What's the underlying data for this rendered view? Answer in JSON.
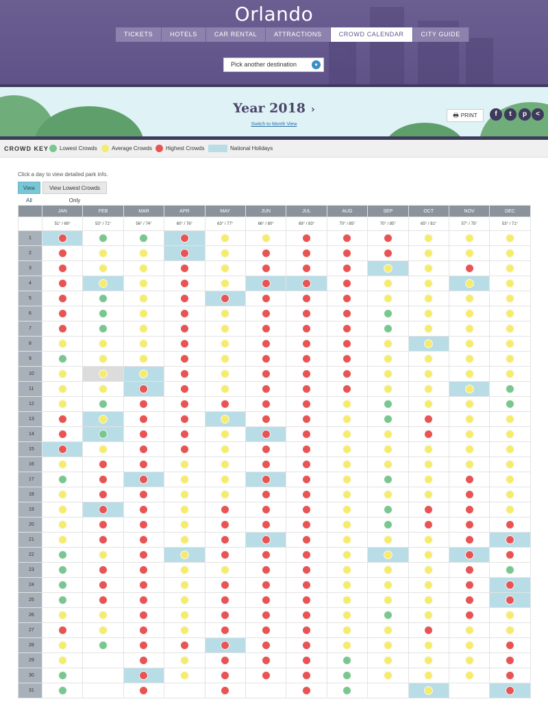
{
  "header": {
    "title": "Orlando",
    "nav": [
      "TICKETS",
      "HOTELS",
      "CAR RENTAL",
      "ATTRACTIONS",
      "CROWD CALENDAR",
      "CITY GUIDE"
    ],
    "active_nav": "CROWD CALENDAR",
    "destination_select": "Pick another destination"
  },
  "year_band": {
    "title": "Year 2018",
    "next_arrow": "›",
    "switch_link": "Switch to Month View",
    "print_label": "PRINT",
    "social": [
      "f",
      "t",
      "p",
      "<"
    ]
  },
  "crowd_key": {
    "title": "CROWD KEY",
    "items": [
      {
        "label": "Lowest Crowds",
        "color": "#79c78f"
      },
      {
        "label": "Average Crowds",
        "color": "#f5ec6e"
      },
      {
        "label": "Highest Crowds",
        "color": "#e85454"
      },
      {
        "label": "National Holidays",
        "color": "#b9dde6"
      }
    ]
  },
  "hint": "Click a day to view detailed park info.",
  "filters": {
    "all": "View All",
    "lowest": "View Lowest Crowds Only"
  },
  "calendar": {
    "months": [
      "JAN",
      "FEB",
      "MAR",
      "APR",
      "MAY",
      "JUN",
      "JUL",
      "AUG",
      "SEP",
      "OCT",
      "NOV",
      "DEC"
    ],
    "temps": [
      "51° / 69°",
      "53° / 71°",
      "56° / 74°",
      "60° / 76°",
      "63° / 77°",
      "66° / 80°",
      "69° / 83°",
      "70° / 85°",
      "70° / 85°",
      "65° / 81°",
      "57° / 75°",
      "53° / 71°"
    ],
    "grid": [
      "RGGRYYRRRYYY",
      "RYYRYRRRRYYY",
      "RYYRYRRRYYRY",
      "RYYRYRRRYYYY",
      "RGYRRRRRYYYY",
      "RGYRYRRRGYYY",
      "RGYRYRRRGYYY",
      "YYYRYRRRYYYY",
      "GYYRYRRRYYYY",
      "YYYRYRRRYYYY",
      "YYRRYRRRYYYG",
      "YGRRRRRYGYYG",
      "RYRRYRRYGRYY",
      "RGRRYRRYYRYY",
      "RYRRYRRYYYYY",
      "YRRYYRRYYYYY",
      "GRRYYRRYGYRY",
      "YRRYYRRYYYRY",
      "YRRYRRRYGRRY",
      "YRRYRRRYGRRR",
      "YRRYRRRYYYRR",
      "GYRYRRRYYYRR",
      "GRRYYRRYYYRG",
      "GRRYRRRYYYRR",
      "GRRYRRRYYYRR",
      "YYRYRRRYGYRY",
      "RYRYRRRYYRYY",
      "YGRRRRRYYYYR",
      "Y.RYRRRGYYYR",
      "G.RYRRRGYYYR",
      "G.R.R.RG.Y.R"
    ],
    "holidays": [
      [
        0,
        0
      ],
      [
        0,
        3
      ],
      [
        1,
        3
      ],
      [
        2,
        8
      ],
      [
        3,
        1
      ],
      [
        3,
        5
      ],
      [
        3,
        6
      ],
      [
        3,
        10
      ],
      [
        4,
        4
      ],
      [
        7,
        9
      ],
      [
        9,
        2
      ],
      [
        10,
        2
      ],
      [
        10,
        10
      ],
      [
        12,
        1
      ],
      [
        12,
        4
      ],
      [
        13,
        1
      ],
      [
        13,
        5
      ],
      [
        14,
        0
      ],
      [
        16,
        2
      ],
      [
        16,
        5
      ],
      [
        18,
        1
      ],
      [
        20,
        5
      ],
      [
        20,
        11
      ],
      [
        21,
        3
      ],
      [
        21,
        8
      ],
      [
        21,
        10
      ],
      [
        23,
        11
      ],
      [
        24,
        11
      ],
      [
        27,
        4
      ],
      [
        29,
        2
      ],
      [
        30,
        9
      ],
      [
        30,
        11
      ]
    ],
    "selected": [
      9,
      1
    ]
  }
}
